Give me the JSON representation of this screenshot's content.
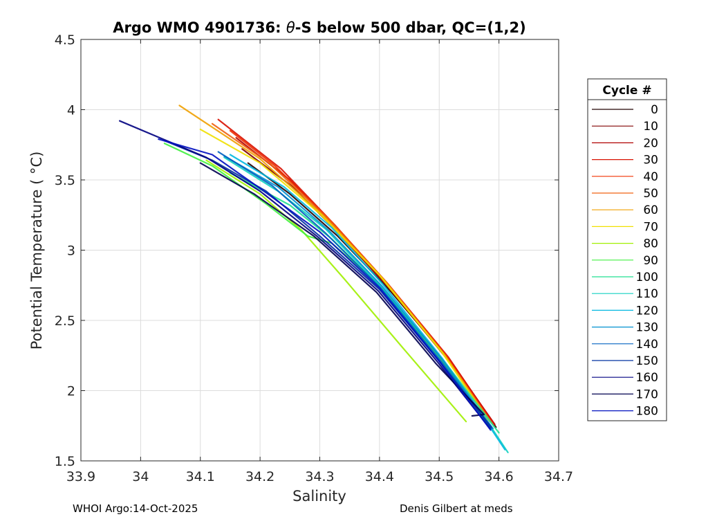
{
  "chart_data": {
    "type": "line",
    "title_prefix": "Argo WMO 4901736: ",
    "title_symbol": "θ",
    "title_suffix": "-S below 500 dbar,  QC=(1,2)",
    "xlabel": "Salinity",
    "ylabel": "Potential Temperature ( °C)",
    "xlim": [
      33.9,
      34.7
    ],
    "ylim": [
      1.5,
      4.5
    ],
    "xticks": [
      "33.9",
      "34",
      "34.1",
      "34.2",
      "34.3",
      "34.4",
      "34.5",
      "34.6",
      "34.7"
    ],
    "yticks": [
      "1.5",
      "2",
      "2.5",
      "3",
      "3.5",
      "4",
      "4.5"
    ],
    "grid": true,
    "legend": {
      "title": "Cycle #",
      "placement": "outside-right",
      "entries": [
        "0",
        "10",
        "20",
        "30",
        "40",
        "50",
        "60",
        "70",
        "80",
        "90",
        "100",
        "110",
        "120",
        "130",
        "140",
        "150",
        "160",
        "170",
        "180"
      ],
      "colors": [
        "#200000",
        "#800000",
        "#b00000",
        "#d81000",
        "#f03000",
        "#f06010",
        "#f0a000",
        "#f0e000",
        "#a0f000",
        "#40f040",
        "#20e090",
        "#10d0c0",
        "#00b8e0",
        "#0090d0",
        "#0060c0",
        "#0030a0",
        "#000080",
        "#000050",
        "#0010c0"
      ]
    },
    "series": [
      {
        "cycle": 0,
        "color": "#200000",
        "x": [
          34.595,
          34.52,
          34.42,
          34.33,
          34.25,
          34.18
        ],
        "y": [
          1.74,
          2.2,
          2.7,
          3.1,
          3.4,
          3.62
        ]
      },
      {
        "cycle": 10,
        "color": "#800000",
        "x": [
          34.594,
          34.518,
          34.418,
          34.332,
          34.255,
          34.17
        ],
        "y": [
          1.74,
          2.2,
          2.72,
          3.12,
          3.45,
          3.72
        ]
      },
      {
        "cycle": 20,
        "color": "#b00000",
        "x": [
          34.593,
          34.517,
          34.416,
          34.33,
          34.25,
          34.16
        ],
        "y": [
          1.76,
          2.22,
          2.74,
          3.15,
          3.5,
          3.8
        ]
      },
      {
        "cycle": 30,
        "color": "#d81000",
        "x": [
          34.592,
          34.515,
          34.414,
          34.325,
          34.235,
          34.13
        ],
        "y": [
          1.76,
          2.24,
          2.76,
          3.18,
          3.58,
          3.93
        ]
      },
      {
        "cycle": 40,
        "color": "#f03000",
        "x": [
          34.59,
          34.513,
          34.412,
          34.32,
          34.225,
          34.15
        ],
        "y": [
          1.76,
          2.24,
          2.77,
          3.2,
          3.6,
          3.85
        ]
      },
      {
        "cycle": 50,
        "color": "#f06010",
        "x": [
          34.588,
          34.51,
          34.41,
          34.315,
          34.215,
          34.12
        ],
        "y": [
          1.77,
          2.25,
          2.78,
          3.22,
          3.62,
          3.9
        ]
      },
      {
        "cycle": 60,
        "color": "#f0a000",
        "x": [
          34.585,
          34.508,
          34.405,
          34.305,
          34.2,
          34.065
        ],
        "y": [
          1.78,
          2.26,
          2.8,
          3.25,
          3.65,
          4.03
        ]
      },
      {
        "cycle": 70,
        "color": "#f0e000",
        "x": [
          34.582,
          34.505,
          34.4,
          34.3,
          34.2,
          34.1
        ],
        "y": [
          1.79,
          2.27,
          2.82,
          3.26,
          3.62,
          3.86
        ]
      },
      {
        "cycle": 80,
        "color": "#a0f000",
        "x": [
          34.545,
          34.44,
          34.34,
          34.27,
          34.2,
          34.11
        ],
        "y": [
          1.78,
          2.3,
          2.8,
          3.14,
          3.4,
          3.64
        ]
      },
      {
        "cycle": 90,
        "color": "#40f040",
        "x": [
          34.58,
          34.5,
          34.4,
          34.32,
          34.28,
          34.21,
          34.12,
          34.04
        ],
        "y": [
          1.77,
          2.24,
          2.75,
          3.05,
          3.1,
          3.33,
          3.6,
          3.76
        ]
      },
      {
        "cycle": 100,
        "color": "#20e090",
        "x": [
          34.6,
          34.51,
          34.41,
          34.32,
          34.25,
          34.15
        ],
        "y": [
          1.7,
          2.2,
          2.7,
          3.08,
          3.32,
          3.55
        ]
      },
      {
        "cycle": 110,
        "color": "#10d0c0",
        "x": [
          34.615,
          34.59,
          34.5,
          34.4,
          34.31,
          34.23,
          34.14
        ],
        "y": [
          1.56,
          1.72,
          2.22,
          2.75,
          3.15,
          3.42,
          3.66
        ]
      },
      {
        "cycle": 120,
        "color": "#00b8e0",
        "x": [
          34.61,
          34.585,
          34.505,
          34.405,
          34.32,
          34.24,
          34.15
        ],
        "y": [
          1.58,
          1.74,
          2.23,
          2.76,
          3.16,
          3.45,
          3.68
        ]
      },
      {
        "cycle": 130,
        "color": "#0090d0",
        "x": [
          34.59,
          34.505,
          34.405,
          34.315,
          34.23,
          34.14
        ],
        "y": [
          1.73,
          2.22,
          2.74,
          3.14,
          3.45,
          3.67
        ]
      },
      {
        "cycle": 140,
        "color": "#0060c0",
        "x": [
          34.588,
          34.503,
          34.402,
          34.31,
          34.22,
          34.13
        ],
        "y": [
          1.73,
          2.21,
          2.73,
          3.12,
          3.46,
          3.7
        ]
      },
      {
        "cycle": 150,
        "color": "#0030a0",
        "x": [
          34.587,
          34.5,
          34.4,
          34.3,
          34.21,
          34.12,
          34.04
        ],
        "y": [
          1.74,
          2.21,
          2.72,
          3.1,
          3.42,
          3.64,
          3.78
        ]
      },
      {
        "cycle": 160,
        "color": "#000080",
        "x": [
          34.585,
          34.498,
          34.398,
          34.295,
          34.2,
          34.11,
          33.965
        ],
        "y": [
          1.73,
          2.2,
          2.71,
          3.1,
          3.42,
          3.66,
          3.92
        ]
      },
      {
        "cycle": 170,
        "color": "#000050",
        "x": [
          34.555,
          34.575,
          34.495,
          34.395,
          34.29,
          34.19,
          34.1
        ],
        "y": [
          1.82,
          1.83,
          2.19,
          2.7,
          3.1,
          3.4,
          3.62
        ]
      },
      {
        "cycle": 180,
        "color": "#0010c0",
        "x": [
          34.586,
          34.5,
          34.4,
          34.3,
          34.2,
          34.12,
          34.03
        ],
        "y": [
          1.72,
          2.21,
          2.73,
          3.13,
          3.44,
          3.68,
          3.79
        ]
      }
    ]
  },
  "footer": {
    "left": "WHOI Argo:14-Oct-2025",
    "right": "Denis Gilbert at meds"
  }
}
